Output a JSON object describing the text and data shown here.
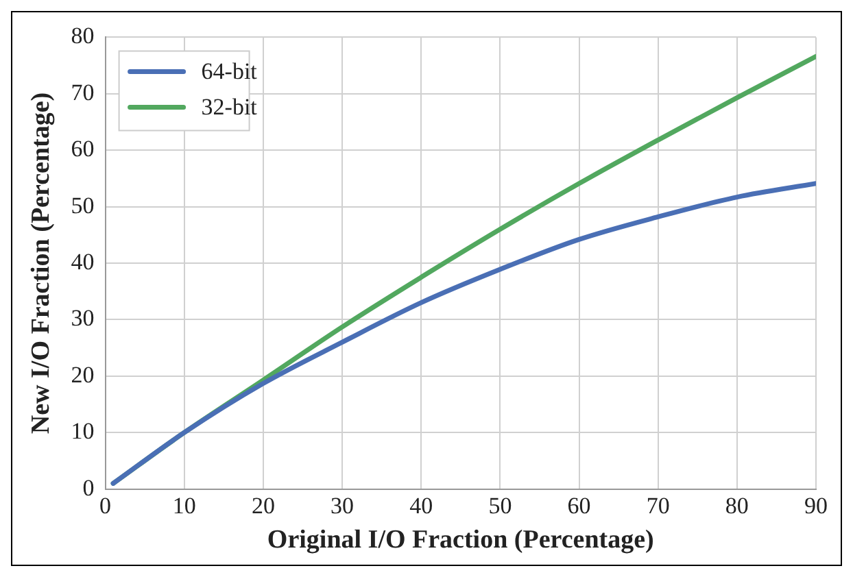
{
  "chart_data": {
    "type": "line",
    "xlabel": "Original I/O Fraction (Percentage)",
    "ylabel": "New I/O Fraction (Percentage)",
    "x": [
      1,
      10,
      20,
      30,
      40,
      50,
      60,
      70,
      80,
      90
    ],
    "series": [
      {
        "name": "64-bit",
        "color": "#4a6fb5",
        "values": [
          1,
          10,
          18.7,
          26,
          33,
          38.9,
          44.2,
          48.2,
          51.7,
          54.1
        ]
      },
      {
        "name": "32-bit",
        "color": "#52a85f",
        "values": [
          1,
          10,
          19.3,
          28.7,
          37.5,
          46,
          54.1,
          61.8,
          69.3,
          76.6
        ]
      }
    ],
    "xlim": [
      0,
      90
    ],
    "xticks": [
      0,
      10,
      20,
      30,
      40,
      50,
      60,
      70,
      80,
      90
    ],
    "ylim": [
      0,
      80
    ],
    "yticks": [
      0,
      10,
      20,
      30,
      40,
      50,
      60,
      70,
      80
    ],
    "grid": true,
    "legend": "top left",
    "marker": "none",
    "line_style": "solid"
  }
}
